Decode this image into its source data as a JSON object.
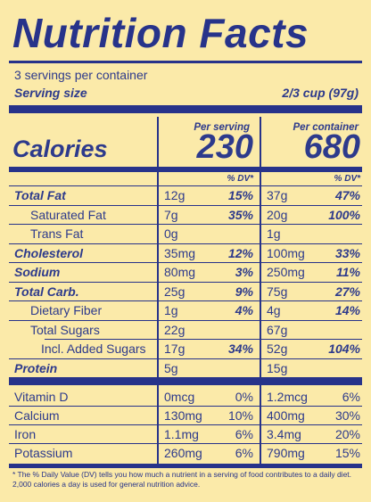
{
  "title": "Nutrition Facts",
  "servings": "3 servings per container",
  "serving_size_label": "Serving size",
  "serving_size_value": "2/3 cup (97g)",
  "per_serving_label": "Per serving",
  "per_container_label": "Per container",
  "calories_label": "Calories",
  "calories_serving": "230",
  "calories_container": "680",
  "dv_header": "% DV*",
  "nutrients": [
    {
      "name": "Total Fat",
      "amt1": "12g",
      "dv1": "15%",
      "amt2": "37g",
      "dv2": "47%"
    },
    {
      "name": "Saturated Fat",
      "amt1": "7g",
      "dv1": "35%",
      "amt2": "20g",
      "dv2": "100%"
    },
    {
      "name": "Trans Fat",
      "amt1": "0g",
      "dv1": "",
      "amt2": "1g",
      "dv2": ""
    },
    {
      "name": "Cholesterol",
      "amt1": "35mg",
      "dv1": "12%",
      "amt2": "100mg",
      "dv2": "33%"
    },
    {
      "name": "Sodium",
      "amt1": "80mg",
      "dv1": "3%",
      "amt2": "250mg",
      "dv2": "11%"
    },
    {
      "name": "Total Carb.",
      "amt1": "25g",
      "dv1": "9%",
      "amt2": "75g",
      "dv2": "27%"
    },
    {
      "name": "Dietary Fiber",
      "amt1": "1g",
      "dv1": "4%",
      "amt2": "4g",
      "dv2": "14%"
    },
    {
      "name": "Total Sugars",
      "amt1": "22g",
      "dv1": "",
      "amt2": "67g",
      "dv2": ""
    },
    {
      "name": "Incl. Added Sugars",
      "amt1": "17g",
      "dv1": "34%",
      "amt2": "52g",
      "dv2": "104%"
    },
    {
      "name": "Protein",
      "amt1": "5g",
      "dv1": "",
      "amt2": "15g",
      "dv2": ""
    }
  ],
  "vitamins": [
    {
      "name": "Vitamin D",
      "amt1": "0mcg",
      "dv1": "0%",
      "amt2": "1.2mcg",
      "dv2": "6%"
    },
    {
      "name": "Calcium",
      "amt1": "130mg",
      "dv1": "10%",
      "amt2": "400mg",
      "dv2": "30%"
    },
    {
      "name": "Iron",
      "amt1": "1.1mg",
      "dv1": "6%",
      "amt2": "3.4mg",
      "dv2": "20%"
    },
    {
      "name": "Potassium",
      "amt1": "260mg",
      "dv1": "6%",
      "amt2": "790mg",
      "dv2": "15%"
    }
  ],
  "footnote": "* The % Daily Value (DV) tells you how much a nutrient in a serving of food contributes to a daily diet. 2,000 calories a day is used for general nutrition advice."
}
